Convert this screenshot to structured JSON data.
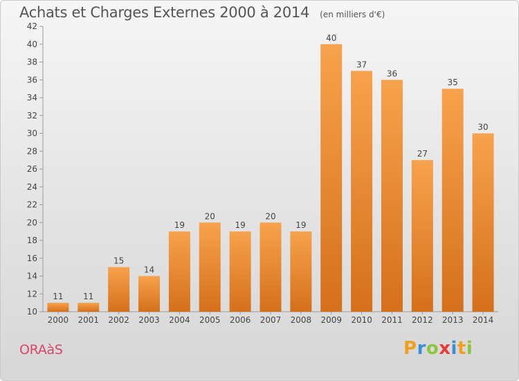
{
  "chart_data": {
    "type": "bar",
    "title": "Achats et Charges Externes 2000 à 2014",
    "unit": "(en milliers d'€)",
    "categories": [
      "2000",
      "2001",
      "2002",
      "2003",
      "2004",
      "2005",
      "2006",
      "2007",
      "2008",
      "2009",
      "2010",
      "2011",
      "2012",
      "2013",
      "2014"
    ],
    "values": [
      11,
      11,
      15,
      14,
      19,
      20,
      19,
      20,
      19,
      40,
      37,
      36,
      27,
      35,
      30
    ],
    "ylim": [
      10,
      42
    ],
    "yticks": [
      10,
      12,
      14,
      16,
      18,
      20,
      22,
      24,
      26,
      28,
      30,
      32,
      34,
      36,
      38,
      40,
      42
    ],
    "grid": false,
    "bar_color": "#f08a2c"
  },
  "footer": {
    "commune": "ORAàS",
    "brand": "Proxiti",
    "brand_colors": [
      "#f0a020",
      "#3a8fd6",
      "#8cc63f",
      "#e83a3a",
      "#3a8fd6",
      "#f0a020",
      "#8cc63f"
    ]
  }
}
